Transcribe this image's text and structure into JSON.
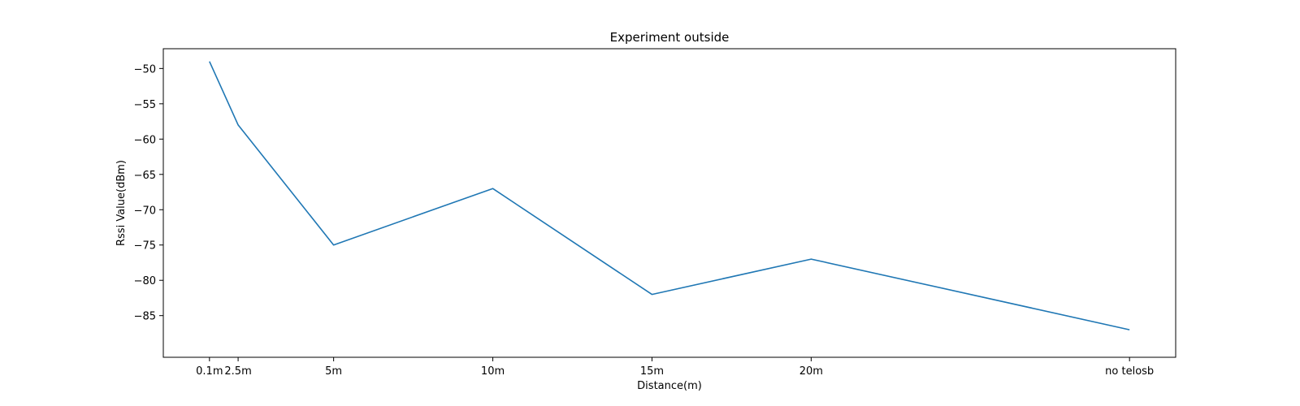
{
  "chart_data": {
    "type": "line",
    "title": "Experiment outside",
    "xlabel": "Distance(m)",
    "ylabel": "Rssi Value(dBm)",
    "categories": [
      "0.1m",
      "2.5m",
      "5m",
      "10m",
      "15m",
      "20m",
      "no telosb"
    ],
    "x": [
      0.1,
      1.0,
      4.0,
      9.0,
      14.0,
      19.0,
      29.0
    ],
    "values": [
      -49,
      -58,
      -75,
      -67,
      -82,
      -77,
      -87
    ],
    "xlim": [
      -1.35,
      30.45
    ],
    "ylim": [
      -90.9,
      -47.2
    ],
    "yticks": [
      -50,
      -55,
      -60,
      -65,
      -70,
      -75,
      -80,
      -85
    ],
    "ytick_labels": [
      "−50",
      "−55",
      "−60",
      "−65",
      "−70",
      "−75",
      "−80",
      "−85"
    ],
    "grid": false,
    "line_color": "#1f77b4"
  }
}
